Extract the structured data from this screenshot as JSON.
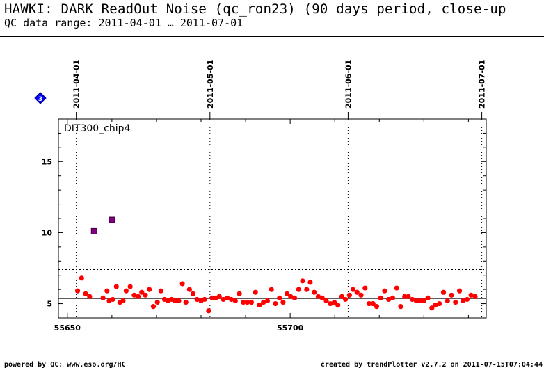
{
  "header": {
    "title": "HAWKI: DARK ReadOut Noise (qc_ron23) (90 days period, close-up",
    "subtitle": "QC data range: 2011-04-01 … 2011-07-01"
  },
  "footer": {
    "left": "powered by QC: www.eso.org/HC",
    "right": "created by trendPlotter v2.7.2 on 2011-07-15T07:04:44"
  },
  "badge": {
    "label": "3",
    "color": "#0000ff"
  },
  "chart_data": {
    "type": "scatter",
    "panel_label": "DIT300_chip4",
    "xlim": [
      55648,
      55744
    ],
    "ylim": [
      4,
      18
    ],
    "x_ticks": [
      55650,
      55700
    ],
    "x_tick_labels": [
      "55650",
      "55700"
    ],
    "y_ticks": [
      5,
      10,
      15
    ],
    "y_tick_labels": [
      "5",
      "10",
      "15"
    ],
    "date_markers": [
      {
        "x": 55652,
        "label": "2011-04-01"
      },
      {
        "x": 55682,
        "label": "2011-05-01"
      },
      {
        "x": 55713,
        "label": "2011-06-01"
      },
      {
        "x": 55743,
        "label": "2011-07-01"
      }
    ],
    "reference_lines": [
      {
        "y": 5.35,
        "style": "solid",
        "color": "#444444"
      },
      {
        "y": 7.4,
        "style": "dotted",
        "color": "#000000"
      }
    ],
    "colors": {
      "points": "#ff0000",
      "outliers": "#800080"
    },
    "series": [
      {
        "style": "points",
        "x": [
          55652.3,
          55653.2,
          55654.1,
          55655.0,
          55658.0,
          55658.9,
          55659.4,
          55660.2,
          55661.0,
          55661.8,
          55662.5,
          55663.2,
          55664.1,
          55665.0,
          55665.9,
          55666.7,
          55667.5,
          55668.4,
          55669.3,
          55670.2,
          55671.0,
          55671.8,
          55672.6,
          55673.4,
          55674.2,
          55675.0,
          55675.8,
          55676.6,
          55677.4,
          55678.2,
          55679.1,
          55680.0,
          55680.8,
          55681.7,
          55682.5,
          55683.3,
          55684.1,
          55685.0,
          55685.9,
          55686.8,
          55687.7,
          55688.6,
          55689.5,
          55690.4,
          55691.3,
          55692.2,
          55693.1,
          55694.0,
          55694.9,
          55695.8,
          55696.7,
          55697.6,
          55698.4,
          55699.3,
          55700.1,
          55701.0,
          55701.9,
          55702.8,
          55703.7,
          55704.5,
          55705.4,
          55706.3,
          55707.2,
          55708.1,
          55709.0,
          55709.9,
          55710.7,
          55711.6,
          55712.4,
          55713.3,
          55714.1,
          55715.0,
          55715.9,
          55716.8,
          55717.7,
          55718.6,
          55719.4,
          55720.3,
          55721.2,
          55722.1,
          55723.0,
          55723.9,
          55724.8,
          55725.7,
          55726.5,
          55727.4,
          55728.3,
          55729.1,
          55730.0,
          55730.9,
          55731.8,
          55732.6,
          55733.5,
          55734.4,
          55735.3,
          55736.2,
          55737.1,
          55738.0,
          55738.8,
          55739.7,
          55740.6,
          55741.5
        ],
        "y": [
          5.9,
          6.8,
          5.7,
          5.5,
          5.4,
          5.9,
          5.2,
          5.3,
          6.2,
          5.1,
          5.2,
          5.9,
          6.2,
          5.6,
          5.5,
          5.8,
          5.6,
          6.0,
          4.8,
          5.1,
          5.9,
          5.3,
          5.2,
          5.3,
          5.2,
          5.2,
          6.4,
          5.1,
          6.0,
          5.7,
          5.3,
          5.2,
          5.3,
          4.5,
          5.4,
          5.4,
          5.5,
          5.3,
          5.4,
          5.3,
          5.2,
          5.7,
          5.1,
          5.1,
          5.1,
          5.8,
          4.9,
          5.1,
          5.2,
          6.0,
          5.0,
          5.4,
          5.1,
          5.7,
          5.5,
          5.4,
          6.0,
          6.6,
          6.0,
          6.5,
          5.8,
          5.5,
          5.4,
          5.2,
          5.0,
          5.1,
          4.9,
          5.5,
          5.3,
          5.6,
          6.0,
          5.8,
          5.6,
          6.1,
          5.0,
          5.0,
          4.8,
          5.4,
          5.9,
          5.3,
          5.4,
          6.1,
          4.8,
          5.5,
          5.5,
          5.3,
          5.2,
          5.2,
          5.2,
          5.4,
          4.7,
          4.9,
          5.0,
          5.8,
          5.2,
          5.6,
          5.1,
          5.9,
          5.2,
          5.3,
          5.6,
          5.5
        ]
      },
      {
        "style": "outliers",
        "x": [
          55656.0,
          55660.0
        ],
        "y": [
          10.1,
          10.9
        ]
      }
    ]
  }
}
